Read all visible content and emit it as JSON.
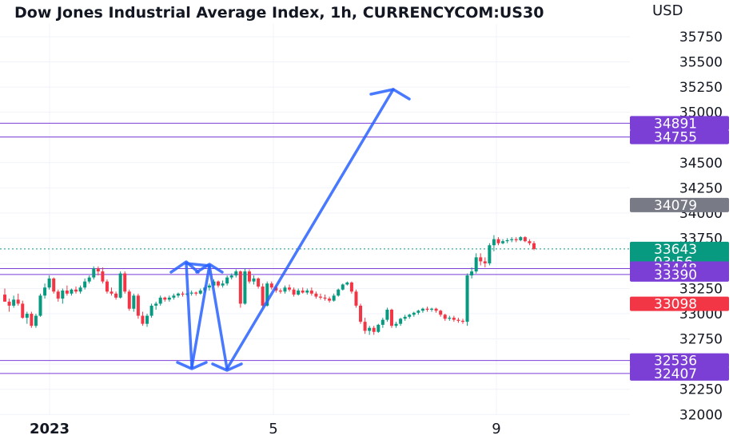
{
  "title": "Dow Jones Industrial Average Index, 1h, CURRENCYCOM:US30",
  "currency": "USD",
  "chart_data": {
    "type": "candlestick",
    "y_ticks": [
      35750,
      35500,
      35250,
      35000,
      34750,
      34500,
      34250,
      34000,
      33750,
      33500,
      33250,
      33000,
      32750,
      32500,
      32250,
      32000
    ],
    "x_tick_labels": [
      "2023",
      "5",
      "9"
    ],
    "ylim": [
      31880,
      35900
    ],
    "last_price": 33643,
    "countdown": "03:56",
    "horizontal_levels": [
      34891,
      34755,
      33448,
      33390,
      32536,
      32407
    ],
    "price_labels": [
      {
        "value": "34891",
        "color": "#7b3fd6"
      },
      {
        "value": "34755",
        "color": "#7b3fd6"
      },
      {
        "value": "34079",
        "color": "#787b86"
      },
      {
        "value": "33643",
        "color": "#089981"
      },
      {
        "value": "33448",
        "color": "#7b3fd6"
      },
      {
        "value": "33390",
        "color": "#7b3fd6"
      },
      {
        "value": "33098",
        "color": "#f23645"
      },
      {
        "value": "32536",
        "color": "#7b3fd6"
      },
      {
        "value": "32407",
        "color": "#7b3fd6"
      }
    ],
    "candles": [
      [
        33190,
        33250,
        33120,
        33120
      ],
      [
        33120,
        33150,
        33020,
        33080
      ],
      [
        33080,
        33180,
        33060,
        33140
      ],
      [
        33140,
        33200,
        33080,
        33100
      ],
      [
        33100,
        33130,
        32950,
        32960
      ],
      [
        32960,
        33020,
        32900,
        33000
      ],
      [
        33000,
        33020,
        32860,
        32880
      ],
      [
        32880,
        33000,
        32860,
        32980
      ],
      [
        32980,
        33200,
        32970,
        33180
      ],
      [
        33180,
        33300,
        33150,
        33260
      ],
      [
        33260,
        33380,
        33240,
        33350
      ],
      [
        33350,
        33360,
        33200,
        33220
      ],
      [
        33220,
        33240,
        33120,
        33150
      ],
      [
        33150,
        33250,
        33100,
        33230
      ],
      [
        33230,
        33280,
        33180,
        33200
      ],
      [
        33200,
        33250,
        33180,
        33240
      ],
      [
        33240,
        33270,
        33200,
        33220
      ],
      [
        33220,
        33280,
        33200,
        33260
      ],
      [
        33260,
        33350,
        33240,
        33320
      ],
      [
        33320,
        33380,
        33300,
        33360
      ],
      [
        33360,
        33470,
        33340,
        33450
      ],
      [
        33450,
        33470,
        33380,
        33420
      ],
      [
        33420,
        33460,
        33300,
        33320
      ],
      [
        33320,
        33340,
        33200,
        33220
      ],
      [
        33220,
        33260,
        33180,
        33200
      ],
      [
        33200,
        33220,
        33140,
        33160
      ],
      [
        33160,
        33420,
        33150,
        33400
      ],
      [
        33400,
        33420,
        33200,
        33220
      ],
      [
        33220,
        33240,
        33030,
        33050
      ],
      [
        33050,
        33200,
        33020,
        33180
      ],
      [
        33180,
        33200,
        32950,
        32980
      ],
      [
        32980,
        33020,
        32880,
        32900
      ],
      [
        32900,
        33000,
        32870,
        32980
      ],
      [
        32980,
        33100,
        32960,
        33080
      ],
      [
        33080,
        33120,
        33040,
        33100
      ],
      [
        33100,
        33180,
        33080,
        33160
      ],
      [
        33160,
        33170,
        33120,
        33140
      ],
      [
        33140,
        33180,
        33120,
        33160
      ],
      [
        33160,
        33200,
        33140,
        33180
      ],
      [
        33180,
        33210,
        33160,
        33200
      ],
      [
        33200,
        33220,
        33170,
        33190
      ],
      [
        33190,
        33210,
        33170,
        33200
      ],
      [
        33200,
        33230,
        33180,
        33210
      ],
      [
        33210,
        33220,
        33180,
        33200
      ],
      [
        33200,
        33250,
        33190,
        33230
      ],
      [
        33230,
        33280,
        33210,
        33260
      ],
      [
        33260,
        33300,
        33230,
        33280
      ],
      [
        33280,
        33340,
        33260,
        33320
      ],
      [
        33320,
        33330,
        33260,
        33280
      ],
      [
        33280,
        33330,
        33260,
        33300
      ],
      [
        33300,
        33380,
        33280,
        33360
      ],
      [
        33360,
        33400,
        33340,
        33380
      ],
      [
        33380,
        33440,
        33360,
        33420
      ],
      [
        33420,
        33430,
        33060,
        33100
      ],
      [
        33100,
        33450,
        33090,
        33420
      ],
      [
        33420,
        33440,
        33300,
        33320
      ],
      [
        33320,
        33380,
        33290,
        33350
      ],
      [
        33350,
        33360,
        33250,
        33270
      ],
      [
        33270,
        33300,
        33060,
        33080
      ],
      [
        33080,
        33320,
        33070,
        33300
      ],
      [
        33300,
        33320,
        33240,
        33260
      ],
      [
        33260,
        33280,
        33210,
        33230
      ],
      [
        33230,
        33250,
        33200,
        33220
      ],
      [
        33220,
        33280,
        33200,
        33260
      ],
      [
        33260,
        33290,
        33220,
        33240
      ],
      [
        33240,
        33260,
        33170,
        33190
      ],
      [
        33190,
        33250,
        33180,
        33230
      ],
      [
        33230,
        33260,
        33200,
        33210
      ],
      [
        33210,
        33250,
        33190,
        33230
      ],
      [
        33230,
        33260,
        33180,
        33200
      ],
      [
        33200,
        33220,
        33150,
        33170
      ],
      [
        33170,
        33200,
        33140,
        33160
      ],
      [
        33160,
        33190,
        33130,
        33150
      ],
      [
        33150,
        33170,
        33110,
        33130
      ],
      [
        33130,
        33200,
        33120,
        33180
      ],
      [
        33180,
        33250,
        33170,
        33240
      ],
      [
        33240,
        33300,
        33230,
        33290
      ],
      [
        33290,
        33320,
        33280,
        33310
      ],
      [
        33310,
        33320,
        33200,
        33220
      ],
      [
        33220,
        33240,
        33060,
        33080
      ],
      [
        33080,
        33100,
        32900,
        32920
      ],
      [
        32920,
        32960,
        32800,
        32830
      ],
      [
        32830,
        32880,
        32790,
        32860
      ],
      [
        32860,
        32880,
        32790,
        32820
      ],
      [
        32820,
        32900,
        32810,
        32890
      ],
      [
        32890,
        32960,
        32860,
        32940
      ],
      [
        32940,
        33060,
        32920,
        33040
      ],
      [
        33040,
        33050,
        32860,
        32880
      ],
      [
        32880,
        32920,
        32860,
        32900
      ],
      [
        32900,
        32960,
        32880,
        32950
      ],
      [
        32950,
        32990,
        32930,
        32970
      ],
      [
        32970,
        33000,
        32950,
        32990
      ],
      [
        32990,
        33020,
        32970,
        33010
      ],
      [
        33010,
        33040,
        32990,
        33030
      ],
      [
        33030,
        33060,
        33010,
        33050
      ],
      [
        33050,
        33070,
        33020,
        33040
      ],
      [
        33040,
        33060,
        33020,
        33050
      ],
      [
        33050,
        33060,
        33010,
        33030
      ],
      [
        33030,
        33040,
        32970,
        32990
      ],
      [
        32990,
        33000,
        32930,
        32950
      ],
      [
        32950,
        32980,
        32930,
        32960
      ],
      [
        32960,
        32980,
        32920,
        32940
      ],
      [
        32940,
        32960,
        32910,
        32930
      ],
      [
        32930,
        32950,
        32900,
        32920
      ],
      [
        32920,
        33400,
        32880,
        33380
      ],
      [
        33380,
        33460,
        33350,
        33420
      ],
      [
        33420,
        33600,
        33400,
        33560
      ],
      [
        33560,
        33600,
        33480,
        33520
      ],
      [
        33520,
        33560,
        33460,
        33500
      ],
      [
        33500,
        33700,
        33480,
        33680
      ],
      [
        33680,
        33780,
        33620,
        33740
      ],
      [
        33740,
        33760,
        33680,
        33700
      ],
      [
        33700,
        33740,
        33690,
        33720
      ],
      [
        33720,
        33750,
        33700,
        33730
      ],
      [
        33730,
        33760,
        33710,
        33740
      ],
      [
        33740,
        33760,
        33710,
        33730
      ],
      [
        33730,
        33770,
        33720,
        33760
      ],
      [
        33760,
        33770,
        33710,
        33720
      ],
      [
        33720,
        33740,
        33680,
        33700
      ],
      [
        33700,
        33720,
        33630,
        33643
      ]
    ]
  }
}
